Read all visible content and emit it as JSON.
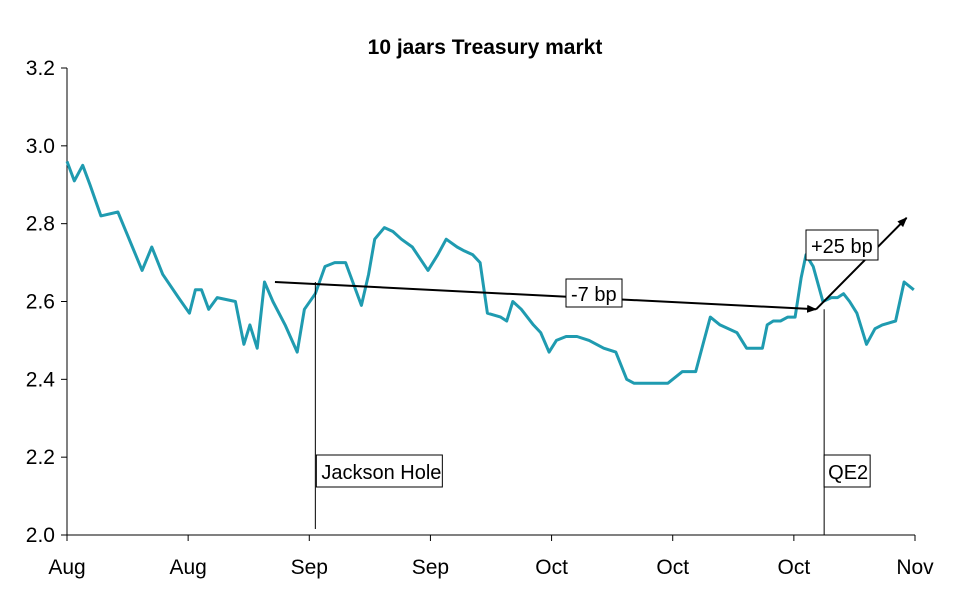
{
  "chart_data": {
    "type": "line",
    "title": "10 jaars Treasury markt",
    "xlabel": "",
    "ylabel": "",
    "ylim": [
      2.0,
      3.2
    ],
    "yticks": [
      2.0,
      2.2,
      2.4,
      2.6,
      2.8,
      3.0,
      3.2
    ],
    "ytick_labels": [
      "2.0",
      "2.2",
      "2.4",
      "2.6",
      "2.8",
      "3.0",
      "3.2"
    ],
    "xlim": [
      0,
      70
    ],
    "xticks": [
      0,
      10,
      20,
      30,
      40,
      50,
      60,
      70
    ],
    "xtick_labels": [
      "Aug",
      "Aug",
      "Sep",
      "Sep",
      "Oct",
      "Oct",
      "Oct",
      "Nov"
    ],
    "grid": false,
    "line_color": "#1f9bb0",
    "series": [
      {
        "name": "10 jaars Treasury",
        "x": [
          0,
          0.6,
          1.3,
          1.9,
          2.8,
          4.2,
          5.4,
          6.2,
          7.0,
          7.9,
          9.2,
          10.1,
          10.6,
          11.1,
          11.7,
          12.4,
          13.9,
          14.6,
          15.1,
          15.7,
          16.3,
          17.0,
          18.0,
          19.0,
          19.6,
          20.5,
          21.3,
          22.1,
          23.0,
          24.3,
          24.9,
          25.4,
          26.2,
          26.9,
          27.6,
          28.5,
          29.8,
          30.6,
          31.3,
          32.2,
          32.8,
          33.5,
          34.1,
          34.7,
          35.8,
          36.3,
          36.8,
          37.5,
          38.5,
          39.1,
          39.8,
          40.4,
          41.2,
          42.1,
          43.1,
          43.7,
          44.3,
          45.3,
          46.2,
          46.8,
          47.5,
          48.2,
          48.8,
          49.6,
          50.8,
          51.9,
          52.5,
          53.1,
          53.9,
          55.3,
          56.1,
          57.4,
          57.8,
          58.3,
          58.9,
          59.5,
          60.1,
          60.6,
          61.0,
          61.6,
          62.4,
          63.1,
          63.6,
          64.1,
          64.6,
          65.2,
          66.0,
          66.7,
          67.3,
          68.4,
          69.1,
          69.9
        ],
        "values": [
          2.96,
          2.91,
          2.95,
          2.9,
          2.82,
          2.83,
          2.74,
          2.68,
          2.74,
          2.67,
          2.61,
          2.57,
          2.63,
          2.63,
          2.58,
          2.61,
          2.6,
          2.49,
          2.54,
          2.48,
          2.65,
          2.6,
          2.54,
          2.47,
          2.58,
          2.62,
          2.69,
          2.7,
          2.7,
          2.59,
          2.67,
          2.76,
          2.79,
          2.78,
          2.76,
          2.74,
          2.68,
          2.72,
          2.76,
          2.74,
          2.73,
          2.72,
          2.7,
          2.57,
          2.56,
          2.55,
          2.6,
          2.58,
          2.54,
          2.52,
          2.47,
          2.5,
          2.51,
          2.51,
          2.5,
          2.49,
          2.48,
          2.47,
          2.4,
          2.39,
          2.39,
          2.39,
          2.39,
          2.39,
          2.42,
          2.42,
          2.49,
          2.56,
          2.54,
          2.52,
          2.48,
          2.48,
          2.54,
          2.55,
          2.55,
          2.56,
          2.56,
          2.66,
          2.72,
          2.69,
          2.6,
          2.61,
          2.61,
          2.62,
          2.6,
          2.57,
          2.49,
          2.53,
          2.54,
          2.55,
          2.65,
          2.63
        ]
      }
    ],
    "annotations": {
      "jackson_hole": {
        "label": "Jackson Hole",
        "x": 20.5
      },
      "qe2": {
        "label": "QE2",
        "x": 62.5
      },
      "minus7": {
        "label": "-7 bp",
        "from": [
          17,
          2.65
        ],
        "to": [
          62.0,
          2.58
        ]
      },
      "plus25": {
        "label": "+25 bp",
        "from": [
          62.0,
          2.58
        ],
        "to": [
          69.8,
          2.82
        ]
      }
    }
  }
}
